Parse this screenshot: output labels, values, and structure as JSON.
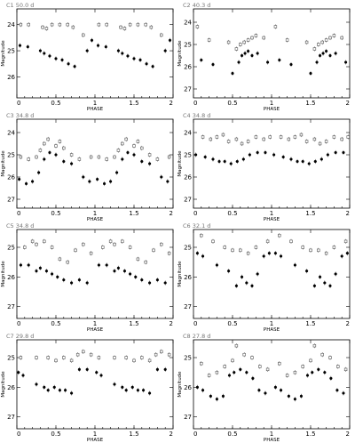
{
  "figure": {
    "xlabel": "PHASE",
    "ylabel": "Magnitude"
  },
  "chart_data": [
    {
      "type": "scatter",
      "title": "C1",
      "period": "50.0 d",
      "xlabel": "PHASE",
      "ylabel": "Magnitude",
      "xlim": [
        0,
        2
      ],
      "xticks": [
        "0",
        "0.5",
        "1",
        "1.5",
        "2"
      ],
      "ylim": [
        23.4,
        26.8
      ],
      "inverted_y": true,
      "yticks": [
        "24",
        "25",
        "26"
      ],
      "series": [
        {
          "marker": "open",
          "x": [
            0.05,
            0.15,
            0.33,
            0.38,
            0.45,
            0.55,
            0.65,
            0.72,
            0.85,
            1.05,
            1.15,
            1.33,
            1.38,
            1.45,
            1.55,
            1.65,
            1.72,
            1.85
          ],
          "y": [
            24.0,
            24.0,
            24.1,
            24.15,
            24.0,
            24.0,
            24.0,
            24.1,
            24.4,
            24.0,
            24.0,
            24.1,
            24.15,
            24.0,
            24.0,
            24.0,
            24.1,
            24.4
          ]
        },
        {
          "marker": "filled",
          "x": [
            0.04,
            0.14,
            0.3,
            0.35,
            0.42,
            0.5,
            0.58,
            0.66,
            0.74,
            0.9,
            0.96,
            1.04,
            1.14,
            1.3,
            1.35,
            1.42,
            1.5,
            1.58,
            1.66,
            1.74,
            1.9,
            1.96
          ],
          "y": [
            24.8,
            24.85,
            25.0,
            25.1,
            25.2,
            25.3,
            25.35,
            25.5,
            25.6,
            25.0,
            24.6,
            24.8,
            24.85,
            25.0,
            25.1,
            25.2,
            25.3,
            25.35,
            25.5,
            25.6,
            25.0,
            24.6
          ]
        }
      ]
    },
    {
      "type": "scatter",
      "title": "C2",
      "period": "40.3 d",
      "xlabel": "PHASE",
      "ylabel": "Magnitude",
      "xlim": [
        0,
        2
      ],
      "xticks": [
        "0",
        "0.5",
        "1",
        "1.5",
        "2"
      ],
      "ylim": [
        23.4,
        27.4
      ],
      "inverted_y": true,
      "yticks": [
        "24",
        "25",
        "26",
        "27"
      ],
      "series": [
        {
          "marker": "open",
          "x": [
            0.05,
            0.2,
            0.45,
            0.55,
            0.6,
            0.65,
            0.7,
            0.75,
            0.8,
            0.9,
            1.05,
            1.2,
            1.45,
            1.55,
            1.6,
            1.65,
            1.7,
            1.75,
            1.8,
            1.9
          ],
          "y": [
            24.2,
            24.8,
            24.9,
            25.2,
            25.0,
            24.9,
            24.8,
            24.7,
            24.6,
            24.7,
            24.2,
            24.8,
            24.9,
            25.2,
            25.0,
            24.9,
            24.8,
            24.7,
            24.6,
            24.7
          ]
        },
        {
          "marker": "filled",
          "x": [
            0.1,
            0.25,
            0.5,
            0.58,
            0.62,
            0.66,
            0.7,
            0.75,
            0.82,
            0.95,
            1.1,
            1.25,
            1.5,
            1.58,
            1.62,
            1.66,
            1.7,
            1.75,
            1.82,
            1.95
          ],
          "y": [
            25.7,
            25.9,
            26.3,
            25.8,
            25.5,
            25.4,
            25.3,
            25.5,
            25.4,
            25.8,
            25.7,
            25.9,
            26.3,
            25.8,
            25.5,
            25.4,
            25.3,
            25.5,
            25.4,
            25.8
          ]
        }
      ]
    },
    {
      "type": "scatter",
      "title": "C3",
      "period": "34.8 d",
      "xlabel": "PHASE",
      "ylabel": "Magnitude",
      "xlim": [
        0,
        2
      ],
      "xticks": [
        "0",
        "0.5",
        "1",
        "1.5",
        "2"
      ],
      "ylim": [
        23.4,
        27.4
      ],
      "inverted_y": true,
      "yticks": [
        "24",
        "25",
        "26",
        "27"
      ],
      "series": [
        {
          "marker": "open",
          "x": [
            0.05,
            0.15,
            0.25,
            0.3,
            0.35,
            0.4,
            0.5,
            0.55,
            0.6,
            0.7,
            0.8,
            0.95,
            1.05,
            1.15,
            1.25,
            1.3,
            1.35,
            1.4,
            1.5,
            1.55,
            1.6,
            1.7,
            1.8,
            1.95
          ],
          "y": [
            25.1,
            25.2,
            25.1,
            24.8,
            24.5,
            24.3,
            24.6,
            24.4,
            24.7,
            25.0,
            25.2,
            25.1,
            25.1,
            25.2,
            25.1,
            24.8,
            24.5,
            24.3,
            24.6,
            24.4,
            24.7,
            25.0,
            25.2,
            25.1
          ]
        },
        {
          "marker": "filled",
          "x": [
            0.03,
            0.12,
            0.2,
            0.28,
            0.35,
            0.42,
            0.5,
            0.6,
            0.7,
            0.85,
            0.93,
            1.03,
            1.12,
            1.2,
            1.28,
            1.35,
            1.42,
            1.5,
            1.6,
            1.7,
            1.85,
            1.93
          ],
          "y": [
            26.1,
            26.3,
            26.2,
            25.8,
            25.2,
            24.9,
            25.0,
            25.3,
            25.4,
            26.0,
            26.2,
            26.1,
            26.3,
            26.2,
            25.8,
            25.2,
            24.9,
            25.0,
            25.3,
            25.4,
            26.0,
            26.2
          ]
        }
      ]
    },
    {
      "type": "scatter",
      "title": "C4",
      "period": "34.8 d",
      "xlabel": "PHASE",
      "ylabel": "Magnitude",
      "xlim": [
        0,
        2
      ],
      "xticks": [
        "0",
        "0.5",
        "1",
        "1.5",
        "2"
      ],
      "ylim": [
        23.4,
        27.4
      ],
      "inverted_y": true,
      "yticks": [
        "24",
        "25",
        "26",
        "27"
      ],
      "series": [
        {
          "marker": "open",
          "x": [
            0.12,
            0.22,
            0.3,
            0.38,
            0.45,
            0.55,
            0.62,
            0.7,
            0.8,
            0.9,
            0.98,
            1.12,
            1.22,
            1.3,
            1.38,
            1.45,
            1.55,
            1.62,
            1.7,
            1.8,
            1.9,
            1.98
          ],
          "y": [
            24.2,
            24.3,
            24.2,
            24.1,
            24.4,
            24.3,
            24.5,
            24.4,
            24.2,
            24.3,
            24.2,
            24.2,
            24.3,
            24.2,
            24.1,
            24.4,
            24.3,
            24.5,
            24.4,
            24.2,
            24.3,
            24.2
          ]
        },
        {
          "marker": "filled",
          "x": [
            0.03,
            0.15,
            0.25,
            0.33,
            0.4,
            0.48,
            0.56,
            0.64,
            0.72,
            0.82,
            0.92,
            1.03,
            1.15,
            1.25,
            1.33,
            1.4,
            1.48,
            1.56,
            1.64,
            1.72,
            1.82,
            1.92
          ],
          "y": [
            25.0,
            25.1,
            25.2,
            25.3,
            25.3,
            25.4,
            25.3,
            25.2,
            25.0,
            24.9,
            24.9,
            25.0,
            25.1,
            25.2,
            25.3,
            25.3,
            25.4,
            25.3,
            25.2,
            25.0,
            24.9,
            24.9
          ]
        }
      ]
    },
    {
      "type": "scatter",
      "title": "C5",
      "period": "34.8 d",
      "xlabel": "PHASE",
      "ylabel": "Magnitude",
      "xlim": [
        0,
        2
      ],
      "xticks": [
        "0",
        "0.5",
        "1",
        "1.5",
        "2"
      ],
      "ylim": [
        24.4,
        27.4
      ],
      "inverted_y": true,
      "yticks": [
        "25",
        "26",
        "27"
      ],
      "series": [
        {
          "marker": "open",
          "x": [
            0.1,
            0.2,
            0.25,
            0.35,
            0.45,
            0.55,
            0.65,
            0.75,
            0.85,
            0.95,
            1.1,
            1.2,
            1.25,
            1.35,
            1.45,
            1.55,
            1.65,
            1.75,
            1.85,
            1.95
          ],
          "y": [
            25.0,
            24.8,
            24.9,
            24.8,
            25.0,
            25.4,
            25.5,
            25.1,
            24.9,
            25.2,
            25.0,
            24.8,
            24.9,
            24.8,
            25.0,
            25.4,
            25.5,
            25.1,
            24.9,
            25.2
          ]
        },
        {
          "marker": "filled",
          "x": [
            0.05,
            0.15,
            0.25,
            0.3,
            0.38,
            0.45,
            0.52,
            0.6,
            0.7,
            0.8,
            0.9,
            1.05,
            1.15,
            1.25,
            1.3,
            1.38,
            1.45,
            1.52,
            1.6,
            1.7,
            1.8,
            1.9
          ],
          "y": [
            25.6,
            25.6,
            25.8,
            25.7,
            25.8,
            25.9,
            26.0,
            26.1,
            26.2,
            26.1,
            26.2,
            25.6,
            25.6,
            25.8,
            25.7,
            25.8,
            25.9,
            26.0,
            26.1,
            26.2,
            26.1,
            26.2
          ]
        }
      ]
    },
    {
      "type": "scatter",
      "title": "C6",
      "period": "32.1 d",
      "xlabel": "PHASE",
      "ylabel": "Magnitude",
      "xlim": [
        0,
        2
      ],
      "xticks": [
        "0",
        "0.5",
        "1",
        "1.5",
        "2"
      ],
      "ylim": [
        24.4,
        27.4
      ],
      "inverted_y": true,
      "yticks": [
        "25",
        "26",
        "27"
      ],
      "series": [
        {
          "marker": "open",
          "x": [
            0.1,
            0.25,
            0.4,
            0.5,
            0.6,
            0.7,
            0.8,
            0.95,
            1.1,
            1.25,
            1.4,
            1.5,
            1.6,
            1.7,
            1.8,
            1.95
          ],
          "y": [
            24.6,
            24.8,
            25.0,
            25.1,
            25.1,
            25.2,
            25.0,
            24.8,
            24.6,
            24.8,
            25.0,
            25.1,
            25.1,
            25.2,
            25.0,
            24.8
          ]
        },
        {
          "marker": "filled",
          "x": [
            0.05,
            0.12,
            0.3,
            0.45,
            0.55,
            0.62,
            0.68,
            0.75,
            0.82,
            0.9,
            0.97,
            1.05,
            1.12,
            1.3,
            1.45,
            1.55,
            1.62,
            1.68,
            1.75,
            1.82,
            1.9,
            1.97
          ],
          "y": [
            25.2,
            25.3,
            25.6,
            25.8,
            26.3,
            26.0,
            26.2,
            26.3,
            25.9,
            25.3,
            25.2,
            25.2,
            25.3,
            25.6,
            25.8,
            26.3,
            26.0,
            26.2,
            26.3,
            25.9,
            25.3,
            25.2
          ]
        }
      ]
    },
    {
      "type": "scatter",
      "title": "C7",
      "period": "29.8 d",
      "xlabel": "PHASE",
      "ylabel": "Magnitude",
      "xlim": [
        0,
        2
      ],
      "xticks": [
        "0",
        "0.5",
        "1",
        "1.5",
        "2"
      ],
      "ylim": [
        24.4,
        27.4
      ],
      "inverted_y": true,
      "yticks": [
        "25",
        "26",
        "27"
      ],
      "series": [
        {
          "marker": "open",
          "x": [
            0.05,
            0.25,
            0.4,
            0.5,
            0.6,
            0.7,
            0.78,
            0.85,
            0.95,
            1.05,
            1.25,
            1.4,
            1.5,
            1.6,
            1.7,
            1.78,
            1.85,
            1.95
          ],
          "y": [
            25.0,
            25.0,
            25.0,
            25.1,
            25.0,
            25.1,
            24.9,
            24.8,
            24.9,
            25.0,
            25.0,
            25.0,
            25.1,
            25.0,
            25.1,
            24.9,
            24.8,
            24.9
          ]
        },
        {
          "marker": "filled",
          "x": [
            0.02,
            0.08,
            0.25,
            0.35,
            0.4,
            0.48,
            0.55,
            0.62,
            0.7,
            0.8,
            0.9,
            1.02,
            1.08,
            1.25,
            1.35,
            1.4,
            1.48,
            1.55,
            1.62,
            1.7,
            1.8,
            1.9
          ],
          "y": [
            25.5,
            25.6,
            25.9,
            26.0,
            26.1,
            26.0,
            26.1,
            26.1,
            26.2,
            25.4,
            25.4,
            25.5,
            25.6,
            25.9,
            26.0,
            26.1,
            26.0,
            26.1,
            26.1,
            26.2,
            25.4,
            25.4
          ]
        }
      ]
    },
    {
      "type": "scatter",
      "title": "C8",
      "period": "27.8 d",
      "xlabel": "PHASE",
      "ylabel": "Magnitude",
      "xlim": [
        0,
        2
      ],
      "xticks": [
        "0",
        "0.5",
        "1",
        "1.5",
        "2"
      ],
      "ylim": [
        24.4,
        27.4
      ],
      "inverted_y": true,
      "yticks": [
        "25",
        "26",
        "27"
      ],
      "series": [
        {
          "marker": "open",
          "x": [
            0.1,
            0.2,
            0.3,
            0.4,
            0.5,
            0.55,
            0.65,
            0.75,
            0.85,
            0.95,
            1.1,
            1.2,
            1.3,
            1.4,
            1.5,
            1.55,
            1.65,
            1.75,
            1.85,
            1.95
          ],
          "y": [
            25.2,
            25.6,
            25.5,
            25.3,
            25.1,
            24.6,
            24.9,
            25.0,
            25.3,
            25.4,
            25.2,
            25.6,
            25.5,
            25.3,
            25.1,
            24.6,
            24.9,
            25.0,
            25.3,
            25.4
          ]
        },
        {
          "marker": "filled",
          "x": [
            0.05,
            0.12,
            0.22,
            0.3,
            0.38,
            0.46,
            0.52,
            0.6,
            0.68,
            0.76,
            0.84,
            0.92,
            1.05,
            1.12,
            1.22,
            1.3,
            1.38,
            1.46,
            1.52,
            1.6,
            1.68,
            1.76,
            1.84,
            1.92
          ],
          "y": [
            26.0,
            26.1,
            26.3,
            26.4,
            26.3,
            25.6,
            25.5,
            25.4,
            25.5,
            25.7,
            26.1,
            26.2,
            26.0,
            26.1,
            26.3,
            26.4,
            26.3,
            25.6,
            25.5,
            25.4,
            25.5,
            25.7,
            26.1,
            26.2
          ]
        }
      ]
    }
  ]
}
